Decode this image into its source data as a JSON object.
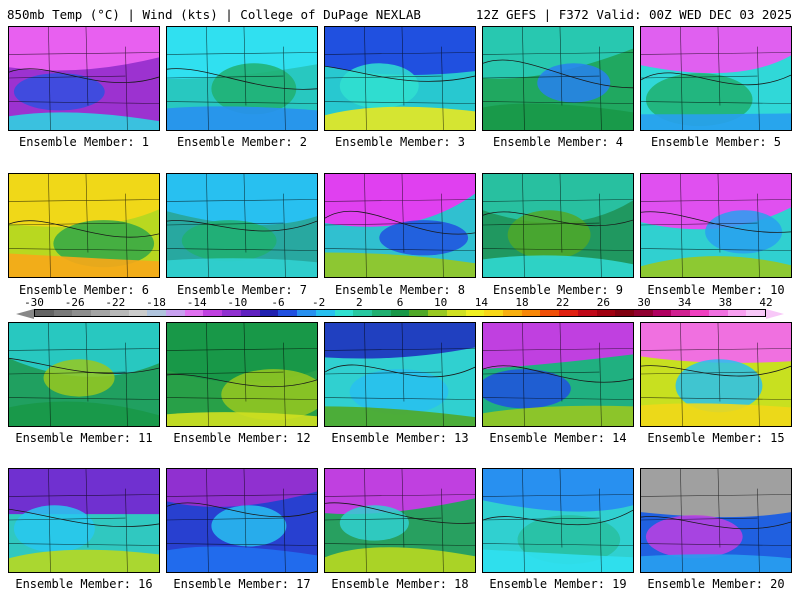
{
  "header": {
    "left": "850mb Temp (°C) | Wind (kts) | College of DuPage NEXLAB",
    "right": "12Z GEFS | F372 Valid: 00Z WED DEC 03 2025"
  },
  "colorbar": {
    "tick_labels": [
      "-30",
      "-26",
      "-22",
      "-18",
      "-14",
      "-10",
      "-6",
      "-2",
      "2",
      "6",
      "10",
      "14",
      "18",
      "22",
      "26",
      "30",
      "34",
      "38",
      "42"
    ],
    "colors": [
      "#646464",
      "#7a7a7a",
      "#8e8e8e",
      "#a4a4a4",
      "#b8b8b8",
      "#cccccc",
      "#b0c4de",
      "#c8a0f0",
      "#e070f0",
      "#c040e0",
      "#9030d0",
      "#6020c0",
      "#2020b0",
      "#2050e0",
      "#2890f0",
      "#28c0f0",
      "#30e0d0",
      "#28c8a0",
      "#20b070",
      "#189848",
      "#50a828",
      "#98c820",
      "#d0e020",
      "#f0f020",
      "#f8d818",
      "#f8b010",
      "#f88808",
      "#f05008",
      "#e02010",
      "#c00818",
      "#a00010",
      "#800010",
      "#900030",
      "#b00060",
      "#d02090",
      "#f040c0",
      "#f070e0",
      "#f8a0f0",
      "#f8c8f8"
    ]
  },
  "members": [
    {
      "label": "Ensemble Member: 1",
      "bg": "#9c32d0",
      "c1": "#e860f0",
      "c2": "#3050e0",
      "c3": "#30d0e0"
    },
    {
      "label": "Ensemble Member: 2",
      "bg": "#28c8c0",
      "c1": "#30e0f0",
      "c2": "#20b070",
      "c3": "#2890f0"
    },
    {
      "label": "Ensemble Member: 3",
      "bg": "#28c8d0",
      "c1": "#2050e0",
      "c2": "#30e0d0",
      "c3": "#e8e820"
    },
    {
      "label": "Ensemble Member: 4",
      "bg": "#20a860",
      "c1": "#28c8b0",
      "c2": "#2880f0",
      "c3": "#189848"
    },
    {
      "label": "Ensemble Member: 5",
      "bg": "#30d8d8",
      "c1": "#e060f0",
      "c2": "#20b070",
      "c3": "#28a0f0"
    },
    {
      "label": "Ensemble Member: 6",
      "bg": "#b8d820",
      "c1": "#f0d818",
      "c2": "#30a848",
      "c3": "#f8a818"
    },
    {
      "label": "Ensemble Member: 7",
      "bg": "#28a8a0",
      "c1": "#28c0f0",
      "c2": "#20b070",
      "c3": "#30d0d0"
    },
    {
      "label": "Ensemble Member: 8",
      "bg": "#30c0d0",
      "c1": "#e040f0",
      "c2": "#2050e0",
      "c3": "#98c820"
    },
    {
      "label": "Ensemble Member: 9",
      "bg": "#209860",
      "c1": "#28c0a0",
      "c2": "#50a828",
      "c3": "#30d8d0"
    },
    {
      "label": "Ensemble Member: 10",
      "bg": "#30d0d0",
      "c1": "#e050f0",
      "c2": "#28a0f0",
      "c3": "#98c820"
    },
    {
      "label": "Ensemble Member: 11",
      "bg": "#20a060",
      "c1": "#28c8c0",
      "c2": "#98c820",
      "c3": "#189848"
    },
    {
      "label": "Ensemble Member: 12",
      "bg": "#28a048",
      "c1": "#189848",
      "c2": "#98c820",
      "c3": "#d0e020"
    },
    {
      "label": "Ensemble Member: 13",
      "bg": "#30d0d0",
      "c1": "#2040c0",
      "c2": "#28c0f0",
      "c3": "#50a828"
    },
    {
      "label": "Ensemble Member: 14",
      "bg": "#20b080",
      "c1": "#c040e0",
      "c2": "#2050e0",
      "c3": "#98c820"
    },
    {
      "label": "Ensemble Member: 15",
      "bg": "#c8e020",
      "c1": "#f070e0",
      "c2": "#28c0f0",
      "c3": "#f0d818"
    },
    {
      "label": "Ensemble Member: 16",
      "bg": "#30c8c0",
      "c1": "#7030d0",
      "c2": "#28c8f0",
      "c3": "#b8d820"
    },
    {
      "label": "Ensemble Member: 17",
      "bg": "#2840d0",
      "c1": "#9030d0",
      "c2": "#28c0f0",
      "c3": "#2070f0"
    },
    {
      "label": "Ensemble Member: 18",
      "bg": "#28a060",
      "c1": "#c040e0",
      "c2": "#30d0d0",
      "c3": "#b8d820"
    },
    {
      "label": "Ensemble Member: 19",
      "bg": "#30d0d0",
      "c1": "#2890f0",
      "c2": "#28c0a0",
      "c3": "#30e0f0"
    },
    {
      "label": "Ensemble Member: 20",
      "bg": "#2060e0",
      "c1": "#a0a0a0",
      "c2": "#c040e0",
      "c3": "#28a0f0"
    }
  ]
}
